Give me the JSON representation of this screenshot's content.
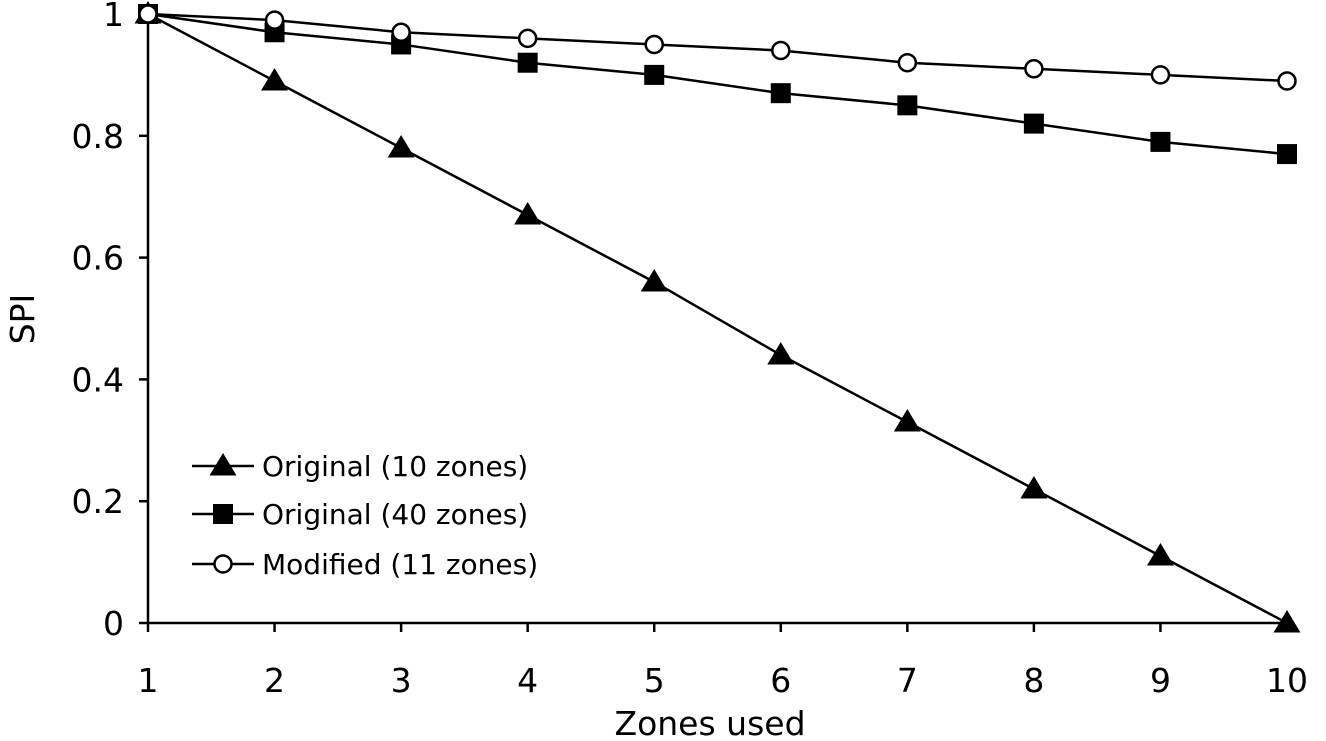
{
  "chart_data": {
    "type": "line",
    "title": "",
    "xlabel": "Zones used",
    "ylabel": "SPI",
    "x": [
      1,
      2,
      3,
      4,
      5,
      6,
      7,
      8,
      9,
      10
    ],
    "xlim": [
      1,
      10
    ],
    "ylim": [
      0,
      1
    ],
    "x_ticks": [
      "1",
      "2",
      "3",
      "4",
      "5",
      "6",
      "7",
      "8",
      "9",
      "10"
    ],
    "y_ticks": [
      "0",
      "0.2",
      "0.4",
      "0.6",
      "0.8",
      "1"
    ],
    "grid": false,
    "legend_position": "bottom-left",
    "series": [
      {
        "name": "Original (10 zones)",
        "marker": "triangle",
        "values": [
          1.0,
          0.89,
          0.78,
          0.67,
          0.56,
          0.44,
          0.33,
          0.22,
          0.11,
          0.0
        ]
      },
      {
        "name": "Original (40 zones)",
        "marker": "square",
        "values": [
          1.0,
          0.97,
          0.95,
          0.92,
          0.9,
          0.87,
          0.85,
          0.82,
          0.79,
          0.77
        ]
      },
      {
        "name": "Modified (11 zones)",
        "marker": "circle",
        "values": [
          1.0,
          0.99,
          0.97,
          0.96,
          0.95,
          0.94,
          0.92,
          0.91,
          0.9,
          0.89
        ]
      }
    ]
  },
  "colors": {
    "line": "#000000",
    "background": "#ffffff"
  }
}
